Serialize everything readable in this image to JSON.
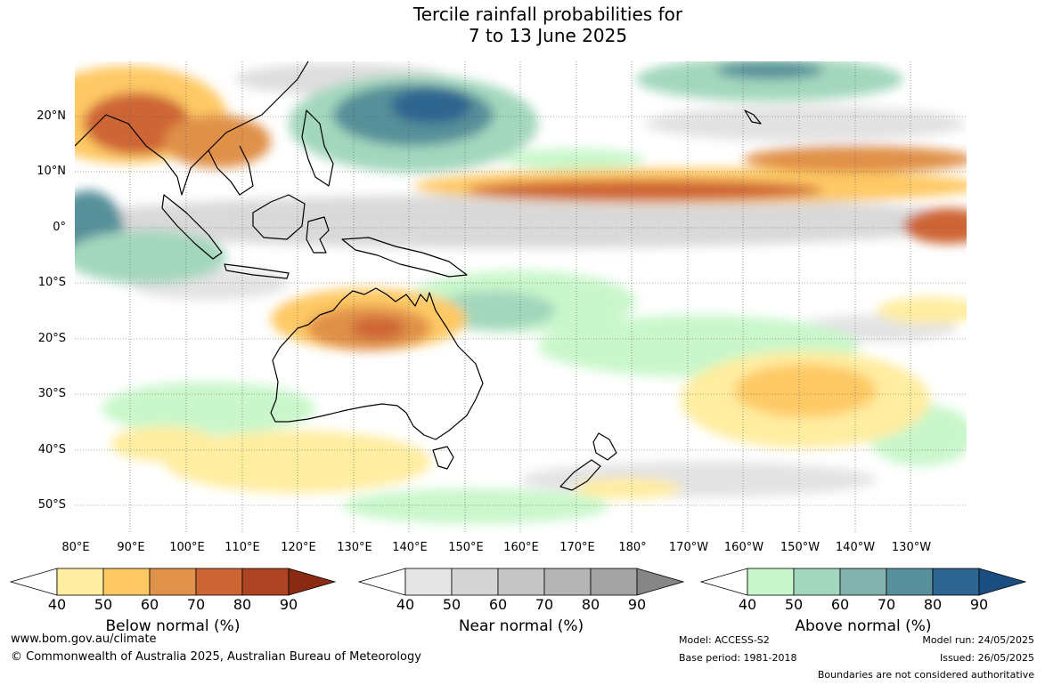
{
  "title": {
    "line1": "Tercile rainfall probabilities for",
    "line2": "7 to 13 June 2025"
  },
  "map": {
    "lat_labels": [
      "20°N",
      "10°N",
      "0°",
      "10°S",
      "20°S",
      "30°S",
      "40°S",
      "50°S"
    ],
    "lon_labels": [
      "80°E",
      "90°E",
      "100°E",
      "110°E",
      "120°E",
      "130°E",
      "140°E",
      "150°E",
      "160°E",
      "170°E",
      "180°",
      "170°W",
      "160°W",
      "150°W",
      "140°W",
      "130°W"
    ],
    "colors": {
      "below": [
        "#ffeda0",
        "#fec965",
        "#e0914a",
        "#ce6535",
        "#ad4525",
        "#8b2a12"
      ],
      "near": [
        "#e6e6e6",
        "#d5d5d5",
        "#c5c5c5",
        "#b5b5b5",
        "#a3a3a3",
        "#868686"
      ],
      "above": [
        "#c9f7cb",
        "#a3d7bd",
        "#82b3ad",
        "#57909a",
        "#2e6590",
        "#1a4d80"
      ]
    }
  },
  "legends": [
    {
      "title": "Below normal (%)",
      "ticks": [
        "40",
        "50",
        "60",
        "70",
        "80",
        "90"
      ]
    },
    {
      "title": "Near normal (%)",
      "ticks": [
        "40",
        "50",
        "60",
        "70",
        "80",
        "90"
      ]
    },
    {
      "title": "Above normal (%)",
      "ticks": [
        "40",
        "50",
        "60",
        "70",
        "80",
        "90"
      ]
    }
  ],
  "footer": {
    "website": "www.bom.gov.au/climate",
    "copyright": "© Commonwealth of Australia 2025, Australian Bureau of Meteorology",
    "model": "Model: ACCESS-S2",
    "base_period": "Base period: 1981-2018",
    "model_run": "Model run: 24/05/2025",
    "issued": "Issued: 26/05/2025",
    "boundaries": "Boundaries are not considered authoritative"
  }
}
